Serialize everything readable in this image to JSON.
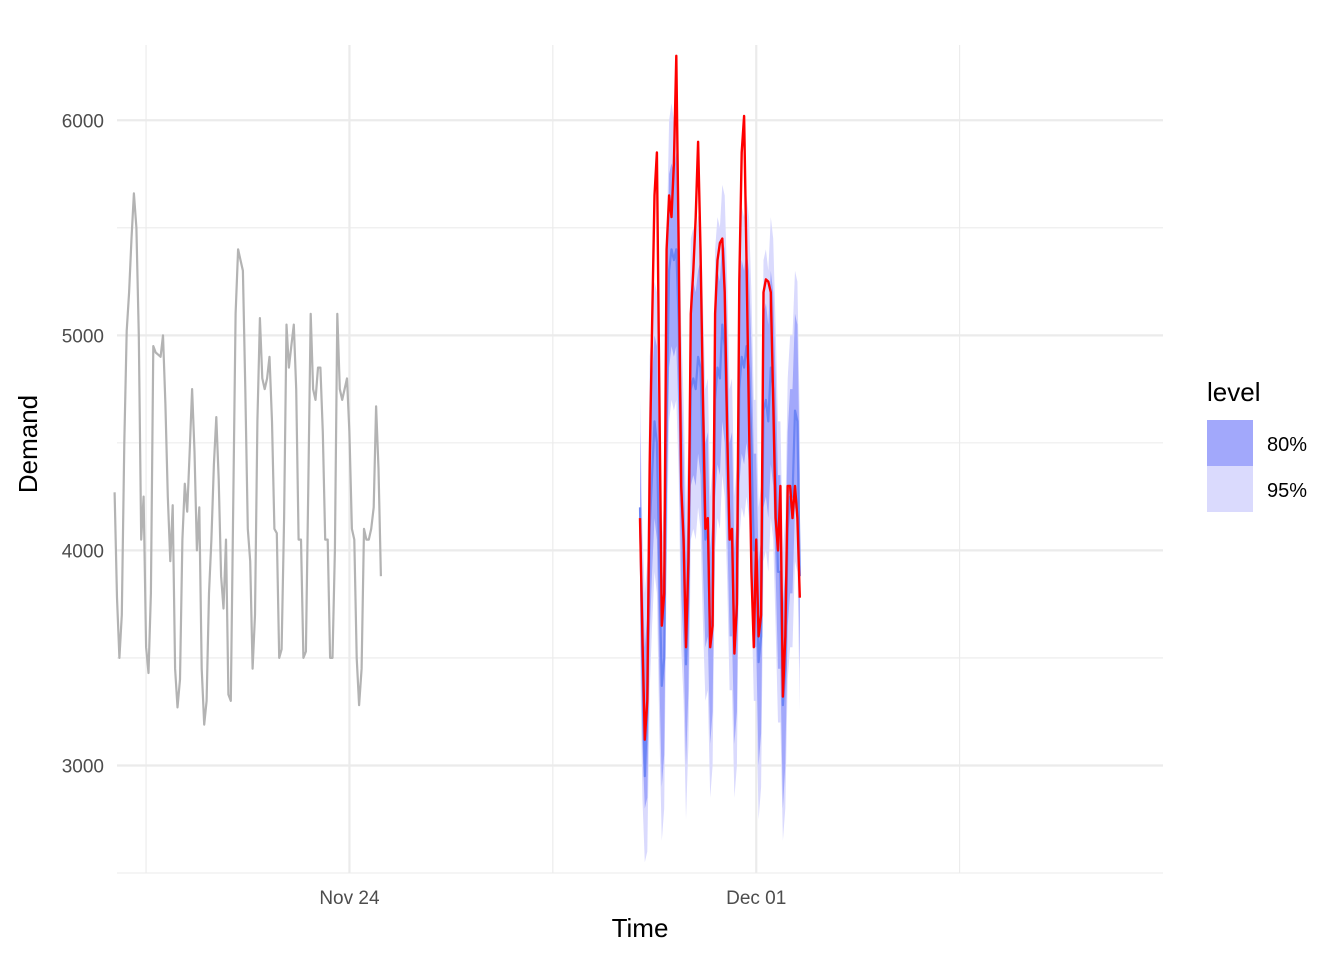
{
  "chart_data": {
    "type": "line",
    "xlabel": "Time",
    "ylabel": "Demand",
    "x_range": [
      "2014-11-20T00:00",
      "2014-12-08T00:00"
    ],
    "ylim": [
      2500,
      6350
    ],
    "grid": true,
    "y_ticks": [
      {
        "value": 3000,
        "label": "3000"
      },
      {
        "value": 4000,
        "label": "4000"
      },
      {
        "value": 5000,
        "label": "5000"
      },
      {
        "value": 6000,
        "label": "6000"
      }
    ],
    "x_ticks": [
      {
        "value": "2014-11-24T00:00",
        "label": "Nov 24"
      },
      {
        "value": "2014-12-01T00:00",
        "label": "Dec 01"
      }
    ],
    "x_minor_ticks": [
      "2014-11-20T12:00",
      "2014-11-27T12:00",
      "2014-12-04T12:00"
    ],
    "legend": {
      "title": "level",
      "position": "right",
      "items": [
        {
          "label": "80%",
          "color": "#a2a8fb"
        },
        {
          "label": "95%",
          "color": "#dadafd"
        }
      ]
    },
    "colors": {
      "history": "#b3b3b3",
      "actual": "#ff0000",
      "forecast": "#6c84f4",
      "band80": "#a2a8fb",
      "band95": "#dadafd"
    },
    "history_start": "2014-11-19T23:00",
    "history_step_minutes": 60,
    "history": [
      4270,
      3780,
      3500,
      3700,
      4500,
      5020,
      5200,
      5450,
      5660,
      5500,
      5000,
      4050,
      4250,
      3550,
      3430,
      3800,
      4950,
      4920,
      4910,
      4900,
      5000,
      4680,
      4250,
      3950,
      4210,
      3450,
      3270,
      3400,
      4050,
      4310,
      4180,
      4450,
      4750,
      4460,
      4000,
      4200,
      3450,
      3190,
      3300,
      3800,
      4050,
      4400,
      4620,
      4330,
      3880,
      3730,
      4050,
      3330,
      3300,
      4200,
      5100,
      5400,
      5350,
      5300,
      4750,
      4100,
      3950,
      3450,
      3700,
      4600,
      5080,
      4800,
      4750,
      4800,
      4900,
      4600,
      4100,
      4080,
      3500,
      3540,
      4150,
      5050,
      4850,
      4950,
      5050,
      4750,
      4050,
      4050,
      3500,
      3530,
      4300,
      5100,
      4750,
      4700,
      4850,
      4850,
      4550,
      4050,
      4050,
      3500,
      3500,
      4000,
      5100,
      4750,
      4700,
      4750,
      4800,
      4550,
      4100,
      4050,
      3500,
      3280,
      3450,
      4100,
      4050,
      4050,
      4100,
      4200,
      4670,
      4380,
      3880
    ],
    "forecast_start": "2014-11-29T00:00",
    "forecast_step_minutes": 60,
    "forecast": [
      4200,
      3500,
      2950,
      3250,
      4100,
      4350,
      4600,
      4500,
      3900,
      3370,
      3500,
      4600,
      5300,
      5400,
      5350,
      5400,
      5050,
      4300,
      4000,
      3470,
      3800,
      4750,
      4800,
      4750,
      4900,
      4850,
      4400,
      4050,
      4100,
      3550,
      3700,
      4700,
      4850,
      4800,
      5050,
      4950,
      4550,
      4050,
      4050,
      3550,
      3700,
      4750,
      4900,
      4850,
      4950,
      4850,
      4500,
      4000,
      4000,
      3480,
      3600,
      4650,
      4700,
      4600,
      4850,
      4750,
      4350,
      3900,
      3900,
      3280,
      3450,
      4100,
      4250,
      4250,
      4650,
      4600,
      3880
    ],
    "band80_upper": [
      4550,
      3900,
      3550,
      3700,
      4650,
      4800,
      5000,
      4950,
      4400,
      3800,
      4000,
      5150,
      5750,
      5800,
      5750,
      5850,
      5550,
      4800,
      4450,
      3950,
      4250,
      5200,
      5250,
      5200,
      5300,
      5350,
      4900,
      4500,
      4550,
      4000,
      4150,
      5150,
      5300,
      5250,
      5450,
      5400,
      5000,
      4500,
      4550,
      4000,
      4150,
      5200,
      5350,
      5300,
      5400,
      5300,
      4950,
      4450,
      4450,
      3950,
      4050,
      5100,
      5150,
      5050,
      5300,
      5200,
      4800,
      4350,
      4350,
      3750,
      3900,
      4550,
      4750,
      4750,
      5100,
      5050,
      4350
    ],
    "band80_lower": [
      3800,
      3100,
      2800,
      2850,
      3600,
      3900,
      4150,
      4050,
      3400,
      2900,
      3050,
      4150,
      4850,
      4950,
      4900,
      4950,
      4600,
      3800,
      3550,
      3000,
      3350,
      4300,
      4350,
      4300,
      4450,
      4350,
      3900,
      3550,
      3600,
      3100,
      3250,
      4250,
      4400,
      4350,
      4600,
      4500,
      4100,
      3600,
      3600,
      3100,
      3250,
      4300,
      4450,
      4400,
      4500,
      4400,
      4050,
      3550,
      3550,
      3000,
      3150,
      4200,
      4250,
      4150,
      4400,
      4300,
      3900,
      3450,
      3450,
      2800,
      3000,
      3650,
      3800,
      3800,
      4200,
      4150,
      3450
    ],
    "band95_upper": [
      4700,
      4100,
      3800,
      3950,
      4900,
      5050,
      5250,
      5200,
      4650,
      4050,
      4250,
      5400,
      6000,
      6080,
      6000,
      6100,
      5800,
      5050,
      4700,
      4200,
      4500,
      5450,
      5500,
      5450,
      5550,
      5600,
      5150,
      4750,
      4800,
      4250,
      4400,
      5400,
      5550,
      5500,
      5700,
      5650,
      5250,
      4750,
      4800,
      4250,
      4400,
      5450,
      5600,
      5550,
      5650,
      5550,
      5200,
      4700,
      4700,
      4200,
      4300,
      5350,
      5400,
      5300,
      5550,
      5450,
      5050,
      4600,
      4600,
      4000,
      4150,
      4800,
      5000,
      5000,
      5300,
      5250,
      4600
    ],
    "band95_lower": [
      3550,
      2850,
      2550,
      2600,
      3350,
      3650,
      3900,
      3800,
      3150,
      2650,
      2800,
      3900,
      4600,
      4700,
      4650,
      4700,
      4350,
      3550,
      3300,
      2750,
      3100,
      4050,
      4100,
      4050,
      4200,
      4100,
      3650,
      3300,
      3350,
      2850,
      3000,
      4000,
      4150,
      4100,
      4350,
      4250,
      3850,
      3350,
      3350,
      2850,
      3000,
      4050,
      4200,
      4150,
      4250,
      4150,
      3800,
      3300,
      3300,
      2750,
      2900,
      3950,
      4000,
      3900,
      4150,
      4050,
      3650,
      3200,
      3200,
      2650,
      2800,
      3400,
      3550,
      3550,
      3950,
      3900,
      3250
    ],
    "actual": [
      4150,
      3600,
      3120,
      3300,
      4400,
      5050,
      5650,
      5850,
      4700,
      3650,
      3800,
      5400,
      5650,
      5550,
      5800,
      6300,
      5400,
      4300,
      4050,
      3550,
      3950,
      5100,
      5300,
      5550,
      5900,
      5400,
      4700,
      4100,
      4150,
      3550,
      3650,
      5100,
      5350,
      5430,
      5450,
      5200,
      4550,
      4050,
      4100,
      3520,
      3750,
      5250,
      5850,
      6020,
      5350,
      4600,
      3900,
      3550,
      4050,
      3600,
      3700,
      5200,
      5260,
      5250,
      5200,
      4700,
      4150,
      4000,
      4300,
      3320,
      3600,
      4300,
      4300,
      4150,
      4300,
      4150,
      3780
    ]
  }
}
